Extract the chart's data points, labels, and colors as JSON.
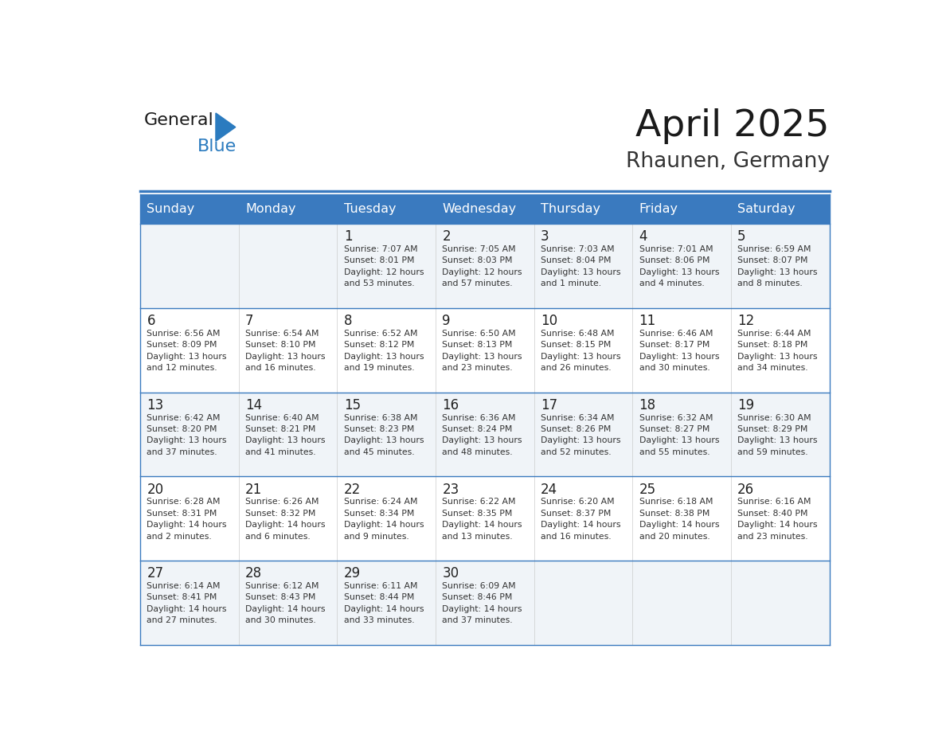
{
  "title": "April 2025",
  "subtitle": "Rhaunen, Germany",
  "header_bg_color": "#3a7abf",
  "header_text_color": "#ffffff",
  "day_names": [
    "Sunday",
    "Monday",
    "Tuesday",
    "Wednesday",
    "Thursday",
    "Friday",
    "Saturday"
  ],
  "row_bg_even": "#f0f4f8",
  "row_bg_odd": "#ffffff",
  "divider_color": "#3a7abf",
  "cell_text_color": "#333333",
  "date_text_color": "#222222",
  "title_color": "#1a1a1a",
  "subtitle_color": "#333333",
  "logo_general_color": "#1a1a1a",
  "logo_blue_color": "#2b7bbf",
  "weeks": [
    {
      "days": [
        {
          "date": null,
          "sunrise": null,
          "sunset": null,
          "daylight": null
        },
        {
          "date": null,
          "sunrise": null,
          "sunset": null,
          "daylight": null
        },
        {
          "date": "1",
          "sunrise": "7:07 AM",
          "sunset": "8:01 PM",
          "daylight": "12 hours\nand 53 minutes."
        },
        {
          "date": "2",
          "sunrise": "7:05 AM",
          "sunset": "8:03 PM",
          "daylight": "12 hours\nand 57 minutes."
        },
        {
          "date": "3",
          "sunrise": "7:03 AM",
          "sunset": "8:04 PM",
          "daylight": "13 hours\nand 1 minute."
        },
        {
          "date": "4",
          "sunrise": "7:01 AM",
          "sunset": "8:06 PM",
          "daylight": "13 hours\nand 4 minutes."
        },
        {
          "date": "5",
          "sunrise": "6:59 AM",
          "sunset": "8:07 PM",
          "daylight": "13 hours\nand 8 minutes."
        }
      ]
    },
    {
      "days": [
        {
          "date": "6",
          "sunrise": "6:56 AM",
          "sunset": "8:09 PM",
          "daylight": "13 hours\nand 12 minutes."
        },
        {
          "date": "7",
          "sunrise": "6:54 AM",
          "sunset": "8:10 PM",
          "daylight": "13 hours\nand 16 minutes."
        },
        {
          "date": "8",
          "sunrise": "6:52 AM",
          "sunset": "8:12 PM",
          "daylight": "13 hours\nand 19 minutes."
        },
        {
          "date": "9",
          "sunrise": "6:50 AM",
          "sunset": "8:13 PM",
          "daylight": "13 hours\nand 23 minutes."
        },
        {
          "date": "10",
          "sunrise": "6:48 AM",
          "sunset": "8:15 PM",
          "daylight": "13 hours\nand 26 minutes."
        },
        {
          "date": "11",
          "sunrise": "6:46 AM",
          "sunset": "8:17 PM",
          "daylight": "13 hours\nand 30 minutes."
        },
        {
          "date": "12",
          "sunrise": "6:44 AM",
          "sunset": "8:18 PM",
          "daylight": "13 hours\nand 34 minutes."
        }
      ]
    },
    {
      "days": [
        {
          "date": "13",
          "sunrise": "6:42 AM",
          "sunset": "8:20 PM",
          "daylight": "13 hours\nand 37 minutes."
        },
        {
          "date": "14",
          "sunrise": "6:40 AM",
          "sunset": "8:21 PM",
          "daylight": "13 hours\nand 41 minutes."
        },
        {
          "date": "15",
          "sunrise": "6:38 AM",
          "sunset": "8:23 PM",
          "daylight": "13 hours\nand 45 minutes."
        },
        {
          "date": "16",
          "sunrise": "6:36 AM",
          "sunset": "8:24 PM",
          "daylight": "13 hours\nand 48 minutes."
        },
        {
          "date": "17",
          "sunrise": "6:34 AM",
          "sunset": "8:26 PM",
          "daylight": "13 hours\nand 52 minutes."
        },
        {
          "date": "18",
          "sunrise": "6:32 AM",
          "sunset": "8:27 PM",
          "daylight": "13 hours\nand 55 minutes."
        },
        {
          "date": "19",
          "sunrise": "6:30 AM",
          "sunset": "8:29 PM",
          "daylight": "13 hours\nand 59 minutes."
        }
      ]
    },
    {
      "days": [
        {
          "date": "20",
          "sunrise": "6:28 AM",
          "sunset": "8:31 PM",
          "daylight": "14 hours\nand 2 minutes."
        },
        {
          "date": "21",
          "sunrise": "6:26 AM",
          "sunset": "8:32 PM",
          "daylight": "14 hours\nand 6 minutes."
        },
        {
          "date": "22",
          "sunrise": "6:24 AM",
          "sunset": "8:34 PM",
          "daylight": "14 hours\nand 9 minutes."
        },
        {
          "date": "23",
          "sunrise": "6:22 AM",
          "sunset": "8:35 PM",
          "daylight": "14 hours\nand 13 minutes."
        },
        {
          "date": "24",
          "sunrise": "6:20 AM",
          "sunset": "8:37 PM",
          "daylight": "14 hours\nand 16 minutes."
        },
        {
          "date": "25",
          "sunrise": "6:18 AM",
          "sunset": "8:38 PM",
          "daylight": "14 hours\nand 20 minutes."
        },
        {
          "date": "26",
          "sunrise": "6:16 AM",
          "sunset": "8:40 PM",
          "daylight": "14 hours\nand 23 minutes."
        }
      ]
    },
    {
      "days": [
        {
          "date": "27",
          "sunrise": "6:14 AM",
          "sunset": "8:41 PM",
          "daylight": "14 hours\nand 27 minutes."
        },
        {
          "date": "28",
          "sunrise": "6:12 AM",
          "sunset": "8:43 PM",
          "daylight": "14 hours\nand 30 minutes."
        },
        {
          "date": "29",
          "sunrise": "6:11 AM",
          "sunset": "8:44 PM",
          "daylight": "14 hours\nand 33 minutes."
        },
        {
          "date": "30",
          "sunrise": "6:09 AM",
          "sunset": "8:46 PM",
          "daylight": "14 hours\nand 37 minutes."
        },
        {
          "date": null,
          "sunrise": null,
          "sunset": null,
          "daylight": null
        },
        {
          "date": null,
          "sunrise": null,
          "sunset": null,
          "daylight": null
        },
        {
          "date": null,
          "sunrise": null,
          "sunset": null,
          "daylight": null
        }
      ]
    }
  ]
}
